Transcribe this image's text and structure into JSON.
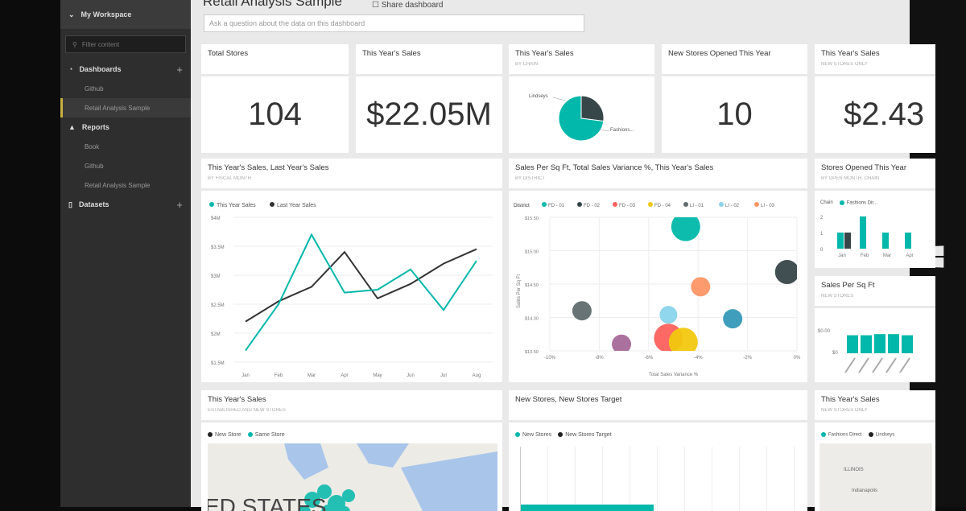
{
  "sidebar": {
    "workspace": "My Workspace",
    "filter_placeholder": "Filter content",
    "dashboards": {
      "label": "Dashboards",
      "items": [
        "Github",
        "Retail Analysis Sample"
      ]
    },
    "reports": {
      "label": "Reports",
      "items": [
        "Book",
        "Github",
        "Retail Analysis Sample"
      ]
    },
    "datasets": {
      "label": "Datasets"
    }
  },
  "header": {
    "title": "Retail Analysis Sample",
    "share": "Share dashboard",
    "qa_placeholder": "Ask a question about the data on this dashboard"
  },
  "tiles": {
    "total_stores": {
      "title": "Total Stores",
      "value": "104"
    },
    "ty_sales": {
      "title": "This Year's Sales",
      "value": "$22.05M"
    },
    "ty_sales_chain": {
      "title": "This Year's Sales",
      "subtitle": "BY CHAIN",
      "labels": [
        "Lindseys",
        "Fashions..."
      ]
    },
    "new_stores": {
      "title": "New Stores Opened This Year",
      "value": "10"
    },
    "ty_sales_new": {
      "title": "This Year's Sales",
      "subtitle": "NEW STORES ONLY",
      "value": "$2.43"
    },
    "line": {
      "title": "This Year's Sales, Last Year's Sales",
      "subtitle": "BY FISCAL MONTH"
    },
    "scatter": {
      "title": "Sales Per Sq Ft, Total Sales Variance %, This Year's Sales",
      "subtitle": "BY DISTRICT"
    },
    "opened": {
      "title": "Stores Opened This Year",
      "subtitle": "BY OPEN MONTH, CHAIN",
      "legend_label": "Chain",
      "legend": [
        "Fashions Dir..."
      ],
      "months": [
        "Jan",
        "Feb",
        "Mar",
        "Apr"
      ],
      "ticks": [
        "2",
        "1",
        "0"
      ]
    },
    "sqft": {
      "title": "Sales Per Sq Ft",
      "subtitle": "NEW STORES",
      "ticks": [
        "$0.00",
        "$0"
      ]
    },
    "map_sales": {
      "title": "This Year's Sales",
      "subtitle": "ESTABLISHED AND NEW STORES",
      "legend": [
        "New Store",
        "Same Store"
      ],
      "map_label": "ED STATES"
    },
    "target": {
      "title": "New Stores, New Stores Target",
      "legend": [
        "New Stores",
        "New Stores Target"
      ]
    },
    "ty_sales_new2": {
      "title": "This Year's Sales",
      "subtitle": "NEW STORES ONLY",
      "legend": [
        "Fashions Direct",
        "Lindseys"
      ],
      "map_labels": [
        "ILLINOIS",
        "Indianapolis"
      ]
    }
  },
  "colors": {
    "teal": "#01b8aa",
    "dark": "#374649"
  },
  "chart_data": [
    {
      "type": "pie",
      "title": "This Year's Sales by Chain",
      "categories": [
        "Lindseys",
        "Fashions Direct"
      ],
      "values": [
        27,
        73
      ]
    },
    {
      "type": "line",
      "title": "This Year's Sales, Last Year's Sales",
      "x": [
        "Jan",
        "Feb",
        "Mar",
        "Apr",
        "May",
        "Jun",
        "Jul",
        "Aug"
      ],
      "yticks": [
        "$1.5M",
        "$2M",
        "$2.5M",
        "$3M",
        "$3.5M",
        "$4M"
      ],
      "ylim": [
        1.5,
        4
      ],
      "series": [
        {
          "name": "This Year Sales",
          "color": "#01b8aa",
          "values": [
            1.7,
            2.5,
            3.7,
            2.7,
            2.75,
            3.1,
            2.4,
            3.25
          ]
        },
        {
          "name": "Last Year Sales",
          "color": "#333333",
          "values": [
            2.2,
            2.55,
            2.8,
            3.4,
            2.6,
            2.85,
            3.2,
            3.45
          ]
        }
      ]
    },
    {
      "type": "scatter",
      "title": "Sales Per Sq Ft, Total Sales Variance %, This Year's Sales",
      "xlabel": "Total Sales Variance %",
      "ylabel": "Sales Per Sq Ft",
      "legend_title": "District",
      "legend": [
        {
          "name": "FD - 01",
          "color": "#01b8aa"
        },
        {
          "name": "FD - 02",
          "color": "#374649"
        },
        {
          "name": "FD - 03",
          "color": "#fd625e"
        },
        {
          "name": "FD - 04",
          "color": "#f2c80f"
        },
        {
          "name": "LI - 01",
          "color": "#5f6b6d"
        },
        {
          "name": "LI - 02",
          "color": "#8ad4eb"
        },
        {
          "name": "LI - 03",
          "color": "#fe9666"
        }
      ],
      "xticks": [
        "-10%",
        "-8%",
        "-6%",
        "-4%",
        "-2%",
        "0%"
      ],
      "xlim": [
        -10,
        0
      ],
      "yticks": [
        "$13.50",
        "$14.00",
        "$14.50",
        "$15.00",
        "$15.50"
      ],
      "ylim": [
        13.5,
        15.5
      ],
      "points": [
        {
          "x": -4.5,
          "y": 15.36,
          "size": 18,
          "color": "#01b8aa"
        },
        {
          "x": -0.4,
          "y": 14.68,
          "size": 15,
          "color": "#374649"
        },
        {
          "x": -3.9,
          "y": 14.46,
          "size": 12,
          "color": "#fe9666"
        },
        {
          "x": -8.7,
          "y": 14.1,
          "size": 12,
          "color": "#5f6b6d"
        },
        {
          "x": -5.2,
          "y": 14.04,
          "size": 11,
          "color": "#8ad4eb"
        },
        {
          "x": -2.6,
          "y": 13.98,
          "size": 12,
          "color": "#3599b8"
        },
        {
          "x": -7.1,
          "y": 13.6,
          "size": 12,
          "color": "#a66999"
        },
        {
          "x": -5.2,
          "y": 13.69,
          "size": 18,
          "color": "#fd625e"
        },
        {
          "x": -4.6,
          "y": 13.63,
          "size": 18,
          "color": "#f2c80f"
        }
      ]
    },
    {
      "type": "bar",
      "title": "Stores Opened This Year",
      "categories": [
        "Jan",
        "Feb",
        "Mar",
        "Apr"
      ],
      "series": [
        {
          "name": "Fashions Direct",
          "values": [
            1,
            2,
            1,
            1
          ]
        },
        {
          "name": "Lindseys",
          "values": [
            1,
            0,
            0,
            0
          ]
        }
      ],
      "ylim": [
        0,
        2
      ]
    },
    {
      "type": "bar",
      "title": "Sales Per Sq Ft",
      "values": [
        0.8,
        0.8,
        0.85,
        0.85,
        0.8
      ]
    }
  ]
}
